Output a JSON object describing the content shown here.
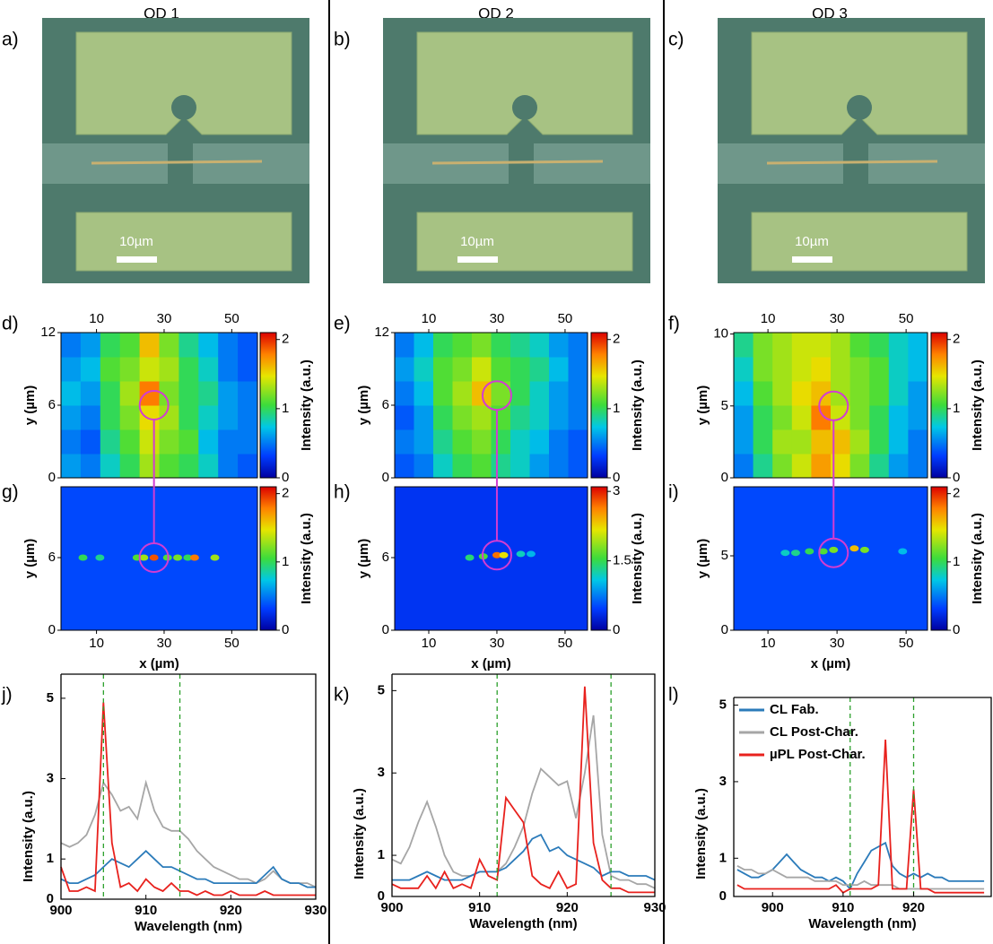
{
  "columns": [
    "QD 1",
    "QD 2",
    "QD 3"
  ],
  "images": [
    {
      "label": "a)",
      "scale_bar": "10µm"
    },
    {
      "label": "b)",
      "scale_bar": "10µm"
    },
    {
      "label": "c)",
      "scale_bar": "10µm"
    }
  ],
  "chart_data": [
    {
      "type": "heatmap",
      "label": "d)",
      "ylabel": "y (µm)",
      "colorbar_label": "Intensity (a.u.)",
      "xaxis": "top",
      "xlim": [
        -0.5,
        57.6
      ],
      "xticks": [
        10,
        30,
        50
      ],
      "ylim": [
        0,
        12
      ],
      "yticks": [
        0,
        6,
        12
      ],
      "zlim": [
        0,
        2.1
      ],
      "zticks": [
        0,
        1,
        2
      ],
      "marker": [
        27,
        6
      ],
      "z": [
        [
          0.6,
          0.5,
          0.8,
          1.0,
          1.3,
          1.1,
          1.0,
          0.8,
          0.5,
          0.4
        ],
        [
          0.5,
          0.4,
          0.9,
          1.1,
          1.4,
          1.2,
          1.1,
          0.7,
          0.5,
          0.5
        ],
        [
          0.6,
          0.5,
          1.0,
          1.2,
          1.5,
          1.3,
          1.0,
          0.8,
          0.6,
          0.5
        ],
        [
          0.7,
          0.6,
          1.0,
          1.3,
          1.8,
          1.2,
          1.0,
          0.9,
          0.6,
          0.5
        ],
        [
          0.6,
          0.7,
          1.1,
          1.2,
          1.4,
          1.3,
          1.0,
          0.8,
          0.5,
          0.4
        ],
        [
          0.5,
          0.6,
          1.0,
          1.1,
          1.6,
          1.2,
          0.9,
          0.7,
          0.5,
          0.4
        ]
      ]
    },
    {
      "type": "heatmap",
      "label": "e)",
      "ylabel": "y (µm)",
      "colorbar_label": "Intensity (a.u.)",
      "xaxis": "top",
      "xlim": [
        0,
        56.6
      ],
      "xticks": [
        10,
        30,
        50
      ],
      "ylim": [
        0,
        12
      ],
      "yticks": [
        0,
        6,
        12
      ],
      "zlim": [
        0,
        2.1
      ],
      "zticks": [
        0,
        1,
        2
      ],
      "marker": [
        30,
        6.8
      ],
      "z": [
        [
          0.4,
          0.5,
          0.8,
          1.0,
          1.1,
          0.9,
          0.8,
          0.6,
          0.5,
          0.4
        ],
        [
          0.5,
          0.6,
          0.9,
          1.1,
          1.2,
          1.0,
          0.8,
          0.7,
          0.5,
          0.4
        ],
        [
          0.4,
          0.6,
          1.0,
          1.2,
          1.3,
          1.1,
          0.9,
          0.8,
          0.6,
          0.5
        ],
        [
          0.5,
          0.7,
          1.1,
          1.3,
          1.6,
          1.2,
          1.0,
          0.8,
          0.6,
          0.5
        ],
        [
          0.6,
          0.8,
          1.1,
          1.2,
          1.4,
          1.1,
          1.0,
          0.9,
          0.7,
          0.5
        ],
        [
          0.5,
          0.7,
          1.0,
          1.1,
          1.2,
          1.0,
          0.9,
          0.8,
          0.6,
          0.5
        ]
      ]
    },
    {
      "type": "heatmap",
      "label": "f)",
      "ylabel": "y (µm)",
      "colorbar_label": "Intensity (a.u.)",
      "xaxis": "top",
      "xlim": [
        0.1,
        56.2
      ],
      "xticks": [
        10,
        30,
        50
      ],
      "ylim": [
        0,
        10.1
      ],
      "yticks": [
        0,
        5,
        10
      ],
      "zlim": [
        0,
        2.1
      ],
      "zticks": [
        0,
        1,
        2
      ],
      "marker": [
        29,
        5
      ],
      "z": [
        [
          0.5,
          0.9,
          1.2,
          1.4,
          1.7,
          1.5,
          1.2,
          0.9,
          0.6,
          0.5
        ],
        [
          0.6,
          1.0,
          1.3,
          1.3,
          1.6,
          1.6,
          1.3,
          1.0,
          0.7,
          0.5
        ],
        [
          0.6,
          1.0,
          1.2,
          1.4,
          1.8,
          1.4,
          1.2,
          1.0,
          0.7,
          0.6
        ],
        [
          0.7,
          1.1,
          1.3,
          1.5,
          1.6,
          1.3,
          1.2,
          1.1,
          0.8,
          0.6
        ],
        [
          0.8,
          1.2,
          1.3,
          1.4,
          1.5,
          1.3,
          1.2,
          1.1,
          0.8,
          0.7
        ],
        [
          0.9,
          1.2,
          1.3,
          1.4,
          1.4,
          1.3,
          1.1,
          1.0,
          0.8,
          0.7
        ]
      ]
    },
    {
      "type": "spotmap",
      "label": "g)",
      "xlabel": "x (µm)",
      "ylabel": "y (µm)",
      "colorbar_label": "Intensity (a.u.)",
      "xaxis": "bottom",
      "xlim": [
        -0.5,
        57.6
      ],
      "xticks": [
        10,
        30,
        50
      ],
      "ylim": [
        0,
        11.85
      ],
      "yticks": [
        0,
        6
      ],
      "zlim": [
        0,
        2.1
      ],
      "zticks": [
        0,
        1,
        2
      ],
      "marker": [
        27,
        6
      ],
      "background": 0.35,
      "spots": [
        [
          6,
          6,
          1.0
        ],
        [
          11,
          6,
          0.9
        ],
        [
          22,
          6,
          1.1
        ],
        [
          24,
          6,
          1.3
        ],
        [
          27,
          6,
          1.9
        ],
        [
          31,
          6,
          1.1
        ],
        [
          34,
          6,
          1.2
        ],
        [
          37,
          6,
          1.0
        ],
        [
          39,
          6,
          1.8
        ],
        [
          45,
          6,
          1.3
        ]
      ]
    },
    {
      "type": "spotmap",
      "label": "h)",
      "xlabel": "x (µm)",
      "ylabel": "y (µm)",
      "colorbar_label": "Intensity (a.u.)",
      "xaxis": "bottom",
      "xlim": [
        0,
        56.6
      ],
      "xticks": [
        10,
        30,
        50
      ],
      "ylim": [
        0,
        11.85
      ],
      "yticks": [
        0,
        6
      ],
      "zlim": [
        0,
        3.1
      ],
      "zticks": [
        0,
        1.5,
        3
      ],
      "marker": [
        30,
        6.2
      ],
      "background": 0.4,
      "spots": [
        [
          22,
          6,
          1.4
        ],
        [
          26,
          6.1,
          1.6
        ],
        [
          30,
          6.2,
          2.7
        ],
        [
          32,
          6.2,
          2.2
        ],
        [
          37,
          6.3,
          1.2
        ],
        [
          40,
          6.3,
          1.0
        ]
      ]
    },
    {
      "type": "spotmap",
      "label": "i)",
      "xlabel": "x (µm)",
      "ylabel": "y (µm)",
      "colorbar_label": "Intensity (a.u.)",
      "xaxis": "bottom",
      "xlim": [
        0.1,
        56.2
      ],
      "xticks": [
        10,
        30,
        50
      ],
      "ylim": [
        0,
        9.64
      ],
      "yticks": [
        0,
        5
      ],
      "zlim": [
        0,
        2.1
      ],
      "zticks": [
        0,
        1,
        2
      ],
      "marker": [
        29,
        5.2
      ],
      "background": 0.35,
      "spots": [
        [
          15,
          5.2,
          0.8
        ],
        [
          18,
          5.2,
          0.9
        ],
        [
          22,
          5.3,
          1.0
        ],
        [
          26,
          5.3,
          1.1
        ],
        [
          29,
          5.4,
          1.2
        ],
        [
          35,
          5.5,
          1.6
        ],
        [
          38,
          5.4,
          1.2
        ],
        [
          49,
          5.3,
          0.7
        ]
      ]
    },
    {
      "type": "line",
      "label": "j)",
      "xlabel": "Wavelength (nm)",
      "ylabel": "Intensity (a.u.)",
      "xlim": [
        900,
        930
      ],
      "xticks": [
        900,
        910,
        920,
        930
      ],
      "ylim": [
        0,
        5.6
      ],
      "yticks": [
        0,
        1,
        3,
        5
      ],
      "vlines": [
        905,
        914
      ],
      "x": [
        900,
        901,
        902,
        903,
        904,
        905,
        906,
        907,
        908,
        909,
        910,
        911,
        912,
        913,
        914,
        915,
        916,
        917,
        918,
        919,
        920,
        921,
        922,
        923,
        924,
        925,
        926,
        927,
        928,
        929,
        930
      ],
      "series": [
        {
          "color": "#a6a6a6",
          "values": [
            1.4,
            1.3,
            1.4,
            1.6,
            2.1,
            2.9,
            2.6,
            2.2,
            2.3,
            2.0,
            2.9,
            2.2,
            1.8,
            1.7,
            1.7,
            1.5,
            1.2,
            1.0,
            0.8,
            0.7,
            0.6,
            0.5,
            0.5,
            0.4,
            0.5,
            0.7,
            0.5,
            0.4,
            0.4,
            0.4,
            0.3
          ]
        },
        {
          "color": "#2b7bba",
          "values": [
            0.5,
            0.4,
            0.4,
            0.5,
            0.6,
            0.8,
            1.0,
            0.9,
            0.8,
            1.0,
            1.2,
            1.0,
            0.8,
            0.8,
            0.7,
            0.6,
            0.5,
            0.5,
            0.4,
            0.4,
            0.4,
            0.4,
            0.4,
            0.4,
            0.6,
            0.8,
            0.5,
            0.4,
            0.4,
            0.3,
            0.3
          ]
        },
        {
          "color": "#e8211d",
          "values": [
            0.8,
            0.2,
            0.2,
            0.3,
            0.2,
            4.9,
            1.4,
            0.3,
            0.4,
            0.2,
            0.5,
            0.3,
            0.2,
            0.4,
            0.2,
            0.2,
            0.1,
            0.2,
            0.1,
            0.1,
            0.2,
            0.1,
            0.1,
            0.1,
            0.2,
            0.1,
            0.1,
            0.1,
            0.1,
            0.1,
            0.1
          ]
        }
      ]
    },
    {
      "type": "line",
      "label": "k)",
      "xlabel": "Wavelength (nm)",
      "ylabel": "Intensity (a.u.)",
      "xlim": [
        900,
        930
      ],
      "xticks": [
        900,
        910,
        920,
        930
      ],
      "ylim": [
        0,
        5.4
      ],
      "yticks": [
        0,
        1,
        3,
        5
      ],
      "vlines": [
        912,
        925
      ],
      "x": [
        900,
        901,
        902,
        903,
        904,
        905,
        906,
        907,
        908,
        909,
        910,
        911,
        912,
        913,
        914,
        915,
        916,
        917,
        918,
        919,
        920,
        921,
        922,
        923,
        924,
        925,
        926,
        927,
        928,
        929,
        930
      ],
      "series": [
        {
          "color": "#a6a6a6",
          "values": [
            0.9,
            0.8,
            1.2,
            1.8,
            2.3,
            1.7,
            1.0,
            0.6,
            0.5,
            0.5,
            0.6,
            0.6,
            0.6,
            0.8,
            1.2,
            1.7,
            2.5,
            3.1,
            2.9,
            2.7,
            2.8,
            1.9,
            3.0,
            4.4,
            1.5,
            0.5,
            0.4,
            0.4,
            0.3,
            0.3,
            0.2
          ]
        },
        {
          "color": "#2b7bba",
          "values": [
            0.4,
            0.4,
            0.4,
            0.5,
            0.6,
            0.5,
            0.4,
            0.4,
            0.4,
            0.5,
            0.6,
            0.6,
            0.6,
            0.7,
            0.9,
            1.1,
            1.4,
            1.5,
            1.1,
            1.2,
            1.0,
            0.9,
            0.8,
            0.7,
            0.5,
            0.6,
            0.6,
            0.5,
            0.5,
            0.5,
            0.4
          ]
        },
        {
          "color": "#e8211d",
          "values": [
            0.3,
            0.2,
            0.2,
            0.2,
            0.5,
            0.2,
            0.6,
            0.2,
            0.3,
            0.2,
            0.9,
            0.5,
            0.4,
            2.4,
            2.1,
            1.8,
            0.5,
            0.3,
            0.2,
            0.6,
            0.2,
            0.3,
            5.1,
            1.3,
            0.4,
            0.2,
            0.2,
            0.1,
            0.1,
            0.1,
            0.1
          ]
        }
      ]
    },
    {
      "type": "line",
      "label": "l)",
      "xlabel": "Wavelength (nm)",
      "ylabel": "Intensity (a.u.)",
      "legend": "upper left",
      "xlim": [
        894.5,
        931
      ],
      "xticks": [
        900,
        910,
        920
      ],
      "ylim": [
        0,
        5.2
      ],
      "yticks": [
        0,
        1,
        3,
        5
      ],
      "vlines": [
        911,
        920
      ],
      "x": [
        895,
        896,
        897,
        898,
        899,
        900,
        901,
        902,
        903,
        904,
        905,
        906,
        907,
        908,
        909,
        910,
        911,
        912,
        913,
        914,
        915,
        916,
        917,
        918,
        919,
        920,
        921,
        922,
        923,
        924,
        925,
        926,
        927,
        928,
        929,
        930
      ],
      "series": [
        {
          "name": "CL Fab.",
          "color": "#2b7bba",
          "values": [
            0.7,
            0.6,
            0.5,
            0.5,
            0.6,
            0.7,
            0.9,
            1.1,
            0.9,
            0.7,
            0.6,
            0.5,
            0.5,
            0.4,
            0.5,
            0.4,
            0.2,
            0.6,
            0.9,
            1.2,
            1.3,
            1.4,
            0.8,
            0.6,
            0.5,
            0.6,
            0.5,
            0.6,
            0.5,
            0.5,
            0.4,
            0.4,
            0.4,
            0.4,
            0.4,
            0.4
          ]
        },
        {
          "name": "CL Post-Char.",
          "color": "#a6a6a6",
          "values": [
            0.8,
            0.7,
            0.7,
            0.6,
            0.6,
            0.7,
            0.6,
            0.5,
            0.5,
            0.5,
            0.5,
            0.4,
            0.4,
            0.4,
            0.4,
            0.3,
            0.3,
            0.3,
            0.4,
            0.3,
            0.3,
            0.3,
            0.3,
            0.2,
            0.2,
            0.2,
            0.2,
            0.2,
            0.2,
            0.2,
            0.2,
            0.2,
            0.2,
            0.2,
            0.2,
            0.2
          ]
        },
        {
          "name": "µPL Post-Char.",
          "color": "#e8211d",
          "values": [
            0.3,
            0.2,
            0.2,
            0.2,
            0.2,
            0.2,
            0.2,
            0.2,
            0.2,
            0.2,
            0.2,
            0.2,
            0.2,
            0.2,
            0.3,
            0.1,
            0.2,
            0.2,
            0.2,
            0.2,
            0.3,
            4.1,
            0.2,
            0.2,
            0.2,
            2.8,
            0.2,
            0.2,
            0.1,
            0.1,
            0.1,
            0.1,
            0.1,
            0.1,
            0.1,
            0.1
          ]
        }
      ]
    }
  ]
}
